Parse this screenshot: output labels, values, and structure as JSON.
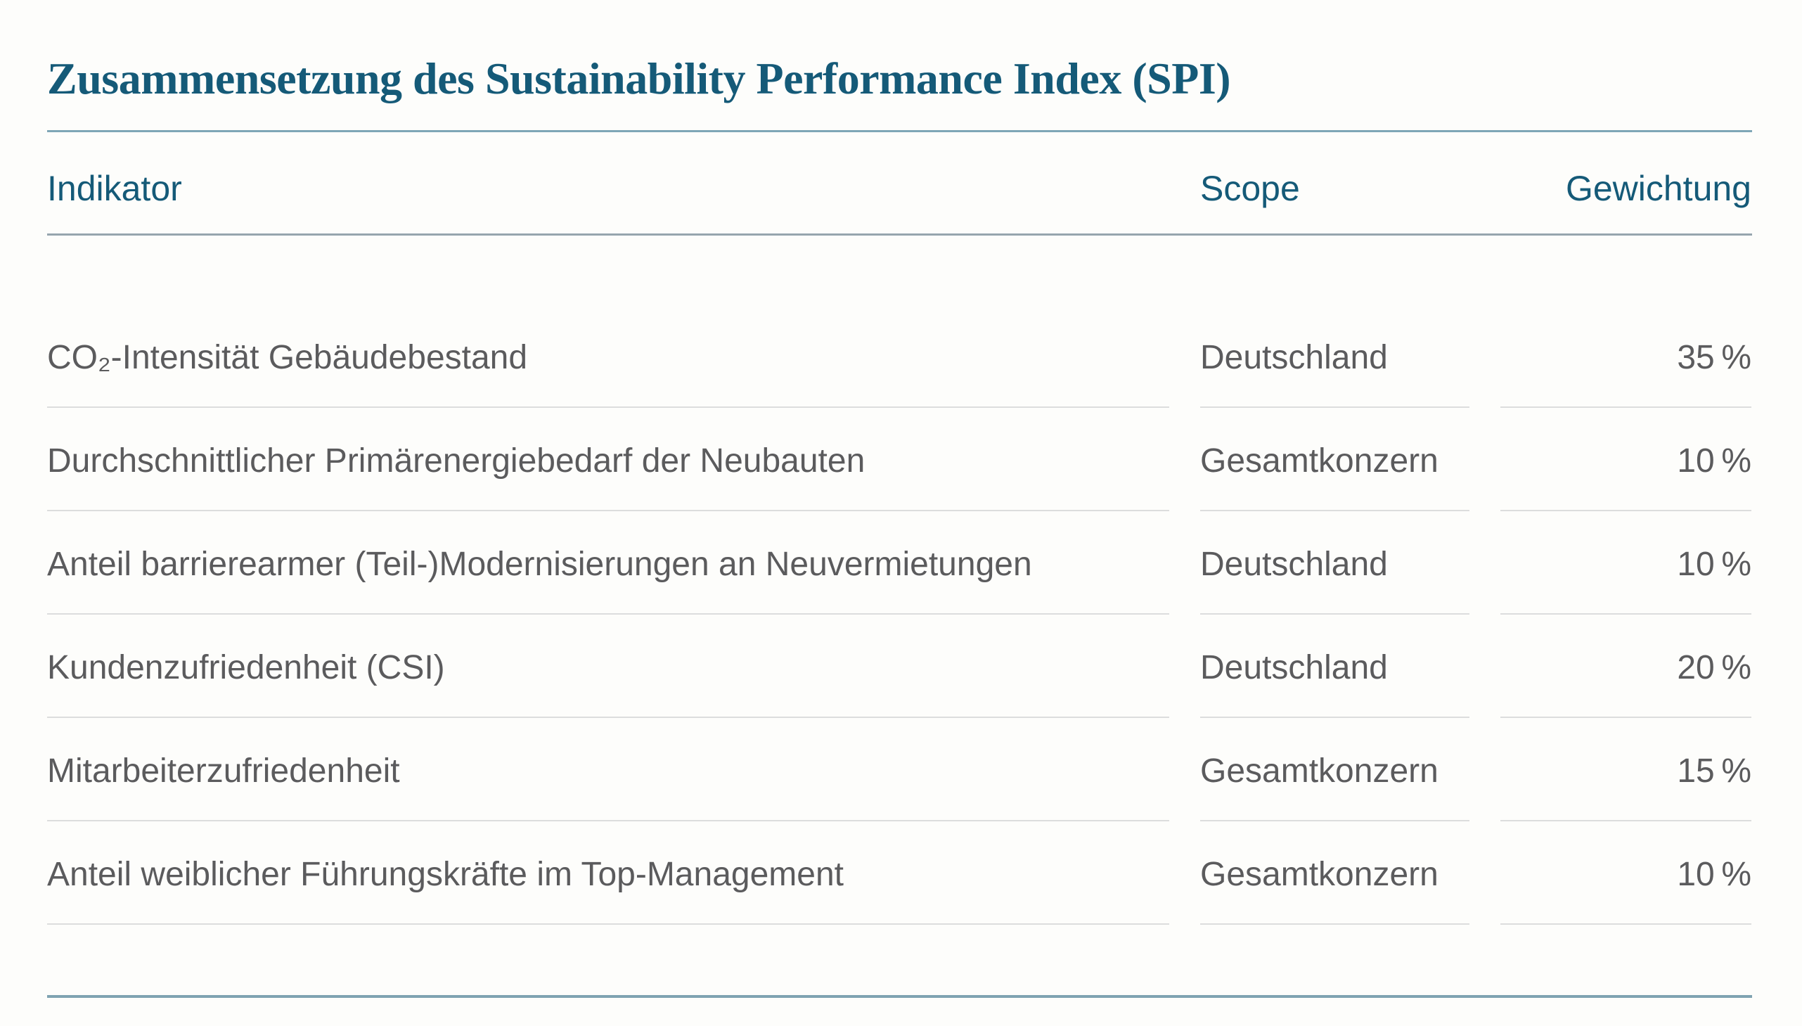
{
  "title": "Zusammensetzung des Sustainability Performance Index (SPI)",
  "colors": {
    "accent_teal": "#155a78",
    "body_text": "#5b5b5d",
    "title_rule": "#7ea6b6",
    "header_rule": "#96a5ae",
    "row_divider": "#dcdddd",
    "bottom_rule": "#7fa3b1",
    "page_bg": "#fdfdfb"
  },
  "table": {
    "columns": [
      "Indikator",
      "Scope",
      "Gewichtung"
    ],
    "rows": [
      {
        "indikator": "CO₂-Intensität Gebäudebestand",
        "scope": "Deutschland",
        "gewichtung": "35 %"
      },
      {
        "indikator": "Durchschnittlicher Primärenergiebedarf der Neubauten",
        "scope": "Gesamtkonzern",
        "gewichtung": "10 %"
      },
      {
        "indikator": "Anteil barrierearmer (Teil-)Modernisierungen an Neuvermietungen",
        "scope": "Deutschland",
        "gewichtung": "10 %"
      },
      {
        "indikator": "Kundenzufriedenheit (CSI)",
        "scope": "Deutschland",
        "gewichtung": "20 %"
      },
      {
        "indikator": "Mitarbeiterzufriedenheit",
        "scope": "Gesamtkonzern",
        "gewichtung": "15 %"
      },
      {
        "indikator": "Anteil weiblicher Führungskräfte im Top-Management",
        "scope": "Gesamtkonzern",
        "gewichtung": "10 %"
      }
    ]
  }
}
